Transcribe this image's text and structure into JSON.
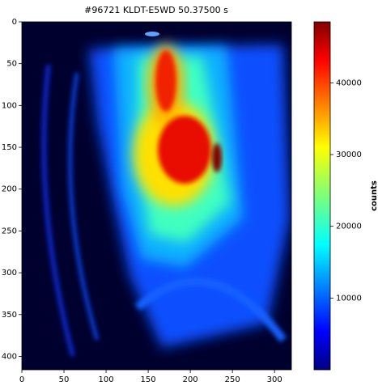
{
  "chart_data": {
    "type": "image",
    "title": "#96721 KLDT-E5WD 50.37500 s",
    "xlim": [
      0,
      320
    ],
    "xticks": [
      0,
      50,
      100,
      150,
      200,
      250,
      300
    ],
    "ylim": [
      416,
      0
    ],
    "yticks": [
      0,
      50,
      100,
      150,
      200,
      250,
      300,
      350,
      400
    ],
    "colorbar": {
      "label": "counts",
      "lim": [
        0,
        48500
      ],
      "ticks": [
        10000,
        20000,
        30000,
        40000
      ]
    }
  }
}
